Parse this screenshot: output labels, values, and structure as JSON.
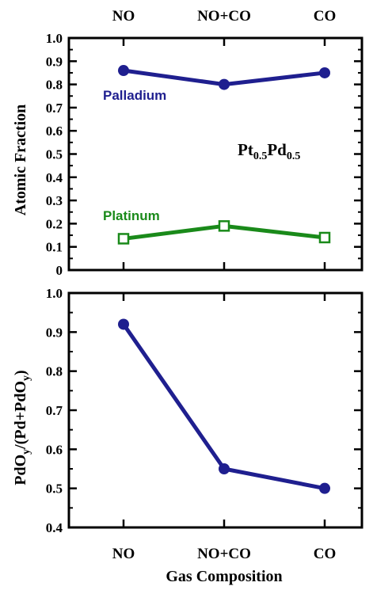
{
  "chart_data": [
    {
      "type": "line",
      "categories": [
        "NO",
        "NO+CO",
        "CO"
      ],
      "ylabel": "Atomic Fraction",
      "ylim": [
        0,
        1.0
      ],
      "yticks": [
        "0",
        "0.1",
        "0.2",
        "0.3",
        "0.4",
        "0.5",
        "0.6",
        "0.7",
        "0.8",
        "0.9",
        "1.0"
      ],
      "annotation": {
        "base1": "Pt",
        "sub1": "0.5",
        "base2": "Pd",
        "sub2": "0.5"
      },
      "series": [
        {
          "name": "Palladium",
          "values": [
            0.86,
            0.8,
            0.85
          ],
          "color": "#1f1f8f",
          "marker": "filled-circle"
        },
        {
          "name": "Platinum",
          "values": [
            0.135,
            0.19,
            0.14
          ],
          "color": "#1a8a1a",
          "marker": "open-square"
        }
      ]
    },
    {
      "type": "line",
      "categories": [
        "NO",
        "NO+CO",
        "CO"
      ],
      "xlabel": "Gas Composition",
      "ylabel": {
        "a": "PdO",
        "b": "y",
        "c": "/(Pd+PdO",
        "d": "y",
        "e": ")"
      },
      "ylim": [
        0.4,
        1.0
      ],
      "yticks": [
        "0.4",
        "0.5",
        "0.6",
        "0.7",
        "0.8",
        "0.9",
        "1.0"
      ],
      "series": [
        {
          "values": [
            0.92,
            0.55,
            0.5
          ],
          "color": "#1f1f8f",
          "marker": "filled-circle"
        }
      ]
    }
  ]
}
